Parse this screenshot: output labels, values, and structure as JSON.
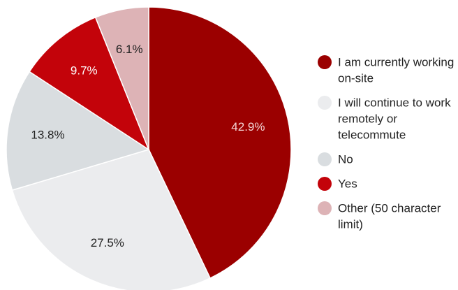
{
  "chart_data": {
    "type": "pie",
    "title": "",
    "legend_position": "right",
    "slices": [
      {
        "label": "I am currently working on-site",
        "value": 42.9,
        "display": "42.9%",
        "color": "#9b0000",
        "label_color": "#f4d6d6"
      },
      {
        "label": "I will continue to work remotely or telecommute",
        "value": 27.5,
        "display": "27.5%",
        "color": "#ebecee",
        "label_color": "#222222"
      },
      {
        "label": "No",
        "value": 13.8,
        "display": "13.8%",
        "color": "#d9dde0",
        "label_color": "#222222"
      },
      {
        "label": "Yes",
        "value": 9.7,
        "display": "9.7%",
        "color": "#c3030a",
        "label_color": "#ffffff"
      },
      {
        "label": "Other (50 character limit)",
        "value": 6.1,
        "display": "6.1%",
        "color": "#ddb3b6",
        "label_color": "#222222"
      }
    ]
  }
}
